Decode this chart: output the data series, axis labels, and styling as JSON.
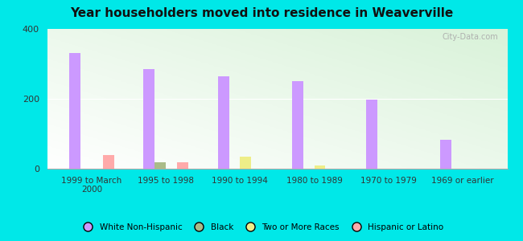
{
  "title": "Year householders moved into residence in Weaverville",
  "categories": [
    "1999 to March\n2000",
    "1995 to 1998",
    "1990 to 1994",
    "1980 to 1989",
    "1970 to 1979",
    "1969 or earlier"
  ],
  "white_non_hispanic": [
    330,
    285,
    265,
    250,
    197,
    82
  ],
  "black": [
    0,
    18,
    0,
    0,
    0,
    0
  ],
  "two_or_more_races": [
    0,
    0,
    35,
    10,
    0,
    0
  ],
  "hispanic_or_latino": [
    38,
    18,
    0,
    0,
    0,
    0
  ],
  "colors": {
    "white_non_hispanic": "#cc99ff",
    "black": "#aabb88",
    "two_or_more_races": "#eeee88",
    "hispanic_or_latino": "#ffaaaa"
  },
  "background_outer": "#00e8e8",
  "ylim": [
    0,
    400
  ],
  "yticks": [
    0,
    200,
    400
  ],
  "bar_width": 0.15,
  "watermark": "City-Data.com",
  "legend_labels": [
    "White Non-Hispanic",
    "Black",
    "Two or More Races",
    "Hispanic or Latino"
  ]
}
